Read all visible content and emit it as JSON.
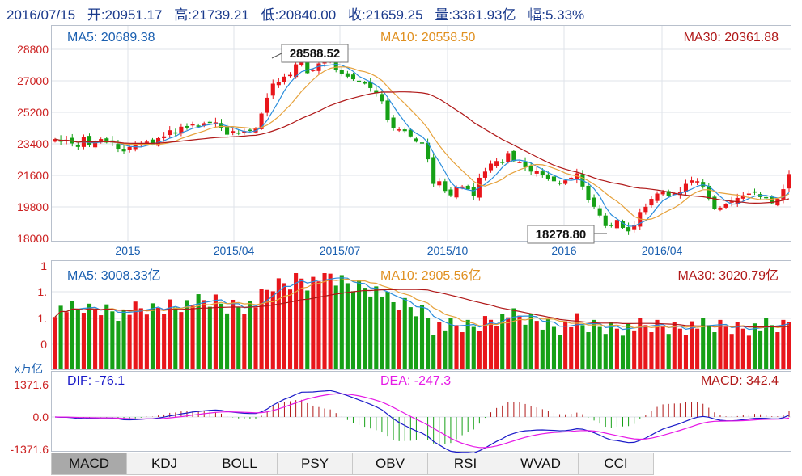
{
  "header": {
    "date": "2016/07/15",
    "open": "开:20951.17",
    "high": "高:21739.21",
    "low": "低:20840.00",
    "close": "收:21659.25",
    "volume": "量:3361.93亿",
    "change": "幅:5.33%"
  },
  "colors": {
    "up": "#e8161b",
    "down": "#16a016",
    "ma5": "#2a8ddc",
    "ma10": "#e6a23c",
    "ma30": "#b01818",
    "dif": "#1919c8",
    "dea": "#e619e6",
    "grid": "#dfe3ea",
    "axis_text": "#cc2020",
    "label_blue": "#1a5fb0"
  },
  "price_panel": {
    "ma5_label": "MA5: 20689.38",
    "ma10_label": "MA10: 20558.50",
    "ma30_label": "MA30: 20361.88",
    "y_ticks": [
      "28800",
      "27000",
      "25200",
      "23400",
      "21600",
      "19800",
      "18000"
    ],
    "x_ticks": [
      "2015",
      "2015/04",
      "2015/07",
      "2015/10",
      "2016",
      "2016/04"
    ],
    "high_marker": "28588.52",
    "low_marker": "18278.80"
  },
  "volume_panel": {
    "ma5_label": "MA5: 3008.33亿",
    "ma10_label": "MA10: 2905.56亿",
    "ma30_label": "MA30: 3020.79亿",
    "y_ticks": [
      "1",
      "1.",
      "1.",
      "0"
    ],
    "unit": "x万亿"
  },
  "macd_panel": {
    "dif_label": "DIF: -76.1",
    "dea_label": "DEA: -247.3",
    "macd_label": "MACD: 342.4",
    "y_ticks": [
      "1371.6",
      "0.0",
      "-1371.6"
    ]
  },
  "tabs": [
    "MACD",
    "KDJ",
    "BOLL",
    "PSY",
    "OBV",
    "RSI",
    "WVAD",
    "CCI"
  ],
  "chart_data": {
    "type": "candlestick",
    "price_range": [
      18000,
      28800
    ],
    "x_ticks": [
      "2015",
      "2015/04",
      "2015/07",
      "2015/10",
      "2016",
      "2016/04"
    ],
    "closes": [
      23650,
      23500,
      23600,
      23400,
      23200,
      23750,
      23300,
      23500,
      23650,
      23450,
      23450,
      23100,
      22950,
      23200,
      23350,
      23400,
      23500,
      23350,
      23700,
      23800,
      24150,
      24000,
      24350,
      24300,
      24500,
      24400,
      24550,
      24600,
      24600,
      24300,
      23900,
      24100,
      24000,
      24100,
      24150,
      24250,
      25100,
      26000,
      26800,
      26900,
      27200,
      27300,
      27900,
      28100,
      27400,
      27600,
      27950,
      28050,
      28300,
      27600,
      27350,
      27200,
      27050,
      26900,
      26800,
      26550,
      26250,
      25800,
      24750,
      24250,
      24200,
      24100,
      23800,
      23500,
      23400,
      22500,
      21100,
      21250,
      20700,
      20450,
      20900,
      20950,
      20800,
      20400,
      21450,
      21800,
      22250,
      22400,
      22300,
      22850,
      22400,
      22350,
      22050,
      21800,
      21850,
      21600,
      21400,
      21250,
      21100,
      21300,
      21450,
      21700,
      20950,
      20200,
      19800,
      19300,
      18700,
      18700,
      19050,
      18600,
      18400,
      18750,
      19500,
      19800,
      20250,
      20550,
      20650,
      20400,
      20550,
      20650,
      21100,
      21300,
      21250,
      20950,
      20250,
      19700,
      19750,
      19950,
      20100,
      20300,
      20450,
      20550,
      20600,
      20350,
      20300,
      20000,
      20250,
      20800,
      21659
    ],
    "extremes": {
      "high": 28588.52,
      "low": 18278.8
    },
    "ma_current": {
      "MA5": 20689.38,
      "MA10": 20558.5,
      "MA30": 20361.88
    },
    "volume_ma_current": {
      "MA5": 3008.33,
      "MA10": 2905.56,
      "MA30": 3020.79
    },
    "macd_current": {
      "DIF": -76.1,
      "DEA": -247.3,
      "MACD": 342.4
    },
    "macd_range": [
      -1371.6,
      1371.6
    ]
  }
}
